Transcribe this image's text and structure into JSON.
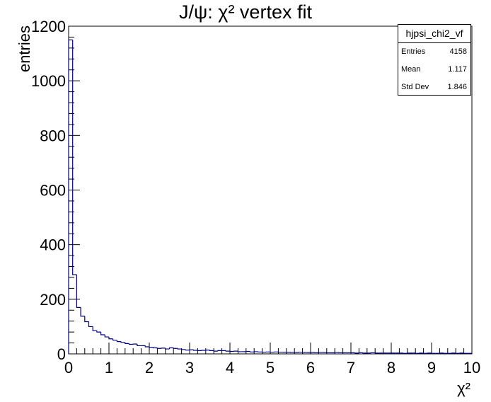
{
  "chart_data": {
    "type": "histogram",
    "title": "J/ψ: χ² vertex fit",
    "xlabel": "χ²",
    "ylabel": "entries",
    "xlim": [
      0,
      10
    ],
    "ylim": [
      0,
      1200
    ],
    "bin_width": 0.1,
    "x_ticks": [
      "0",
      "1",
      "2",
      "3",
      "4",
      "5",
      "6",
      "7",
      "8",
      "9",
      "10"
    ],
    "y_ticks": [
      "0",
      "200",
      "400",
      "600",
      "800",
      "1000",
      "1200"
    ],
    "line_color": "#000080",
    "values": [
      1150,
      290,
      170,
      138,
      118,
      100,
      85,
      80,
      70,
      62,
      55,
      50,
      45,
      42,
      38,
      35,
      36,
      30,
      30,
      26,
      24,
      22,
      20,
      21,
      18,
      22,
      20,
      18,
      16,
      14,
      15,
      13,
      12,
      13,
      14,
      12,
      10,
      12,
      12,
      10,
      9,
      10,
      8,
      8,
      9,
      7,
      8,
      7,
      6,
      7,
      6,
      7,
      6,
      6,
      6,
      5,
      5,
      6,
      5,
      5,
      5,
      4,
      5,
      5,
      4,
      4,
      5,
      4,
      4,
      4,
      4,
      3,
      4,
      3,
      3,
      4,
      3,
      3,
      3,
      3,
      3,
      3,
      3,
      2,
      3,
      3,
      2,
      3,
      2,
      3,
      2,
      2,
      3,
      2,
      2,
      3,
      2,
      3,
      2,
      2
    ]
  },
  "stats": {
    "name": "hjpsi_chi2_vf",
    "rows": [
      {
        "label": "Entries",
        "value": "4158"
      },
      {
        "label": "Mean",
        "value": "1.117"
      },
      {
        "label": "Std Dev",
        "value": "1.846"
      }
    ]
  }
}
